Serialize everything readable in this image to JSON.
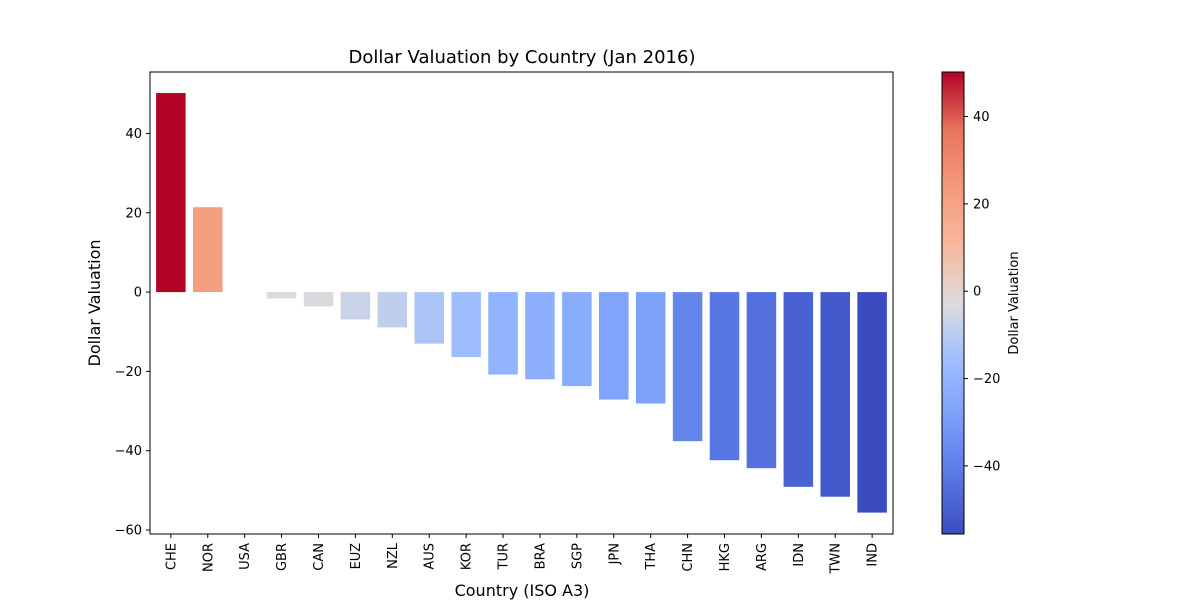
{
  "chart_data": {
    "type": "bar",
    "title": "Dollar Valuation by Country (Jan 2016)",
    "xlabel": "Country (ISO A3)",
    "ylabel": "Dollar Valuation",
    "categories": [
      "CHE",
      "NOR",
      "USA",
      "GBR",
      "CAN",
      "EUZ",
      "NZL",
      "AUS",
      "KOR",
      "TUR",
      "BRA",
      "SGP",
      "JPN",
      "THA",
      "CHN",
      "HKG",
      "ARG",
      "IDN",
      "TWN",
      "IND"
    ],
    "values": [
      50.2,
      21.4,
      0,
      -1.6,
      -3.6,
      -6.9,
      -8.9,
      -13.0,
      -16.4,
      -20.8,
      -22.0,
      -23.7,
      -27.1,
      -28.1,
      -37.6,
      -42.4,
      -44.4,
      -49.1,
      -51.6,
      -55.6
    ],
    "ylim": [
      -61,
      55.5
    ],
    "yticks": [
      -60,
      -40,
      -20,
      0,
      20,
      40
    ],
    "colormap": "coolwarm",
    "colorbar": {
      "label": "Dollar Valuation",
      "range": [
        -55.6,
        50.2
      ],
      "ticks": [
        -40,
        -20,
        0,
        20,
        40
      ]
    },
    "grid": false,
    "legend": "none"
  }
}
